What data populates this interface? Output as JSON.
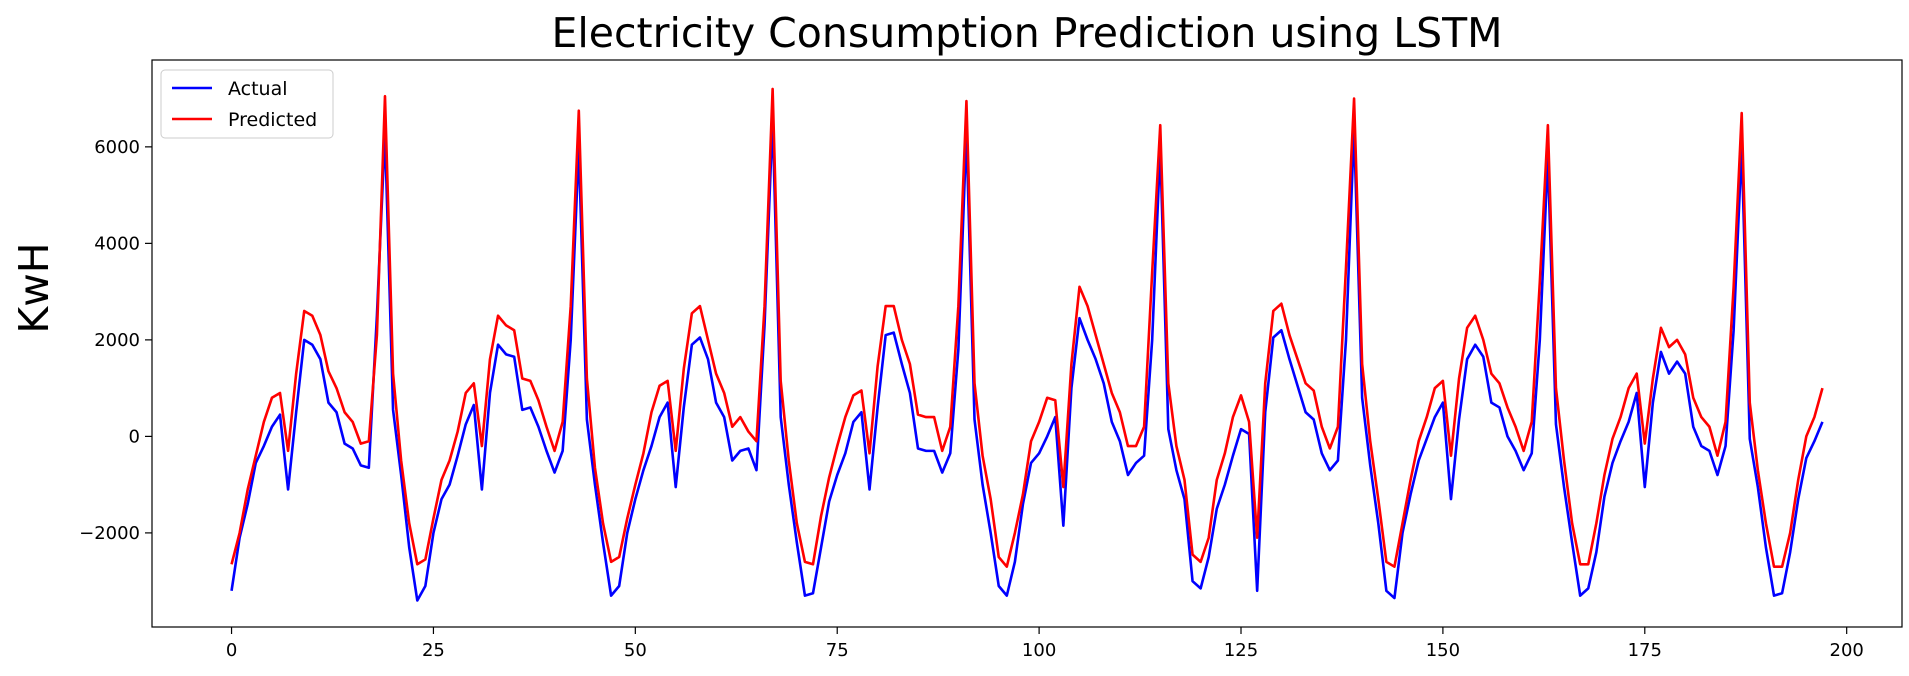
{
  "chart_data": {
    "type": "line",
    "title": "Electricity Consumption Prediction using LSTM",
    "xlabel": "",
    "ylabel": "KwH",
    "xlim": [
      -9.85,
      206.85
    ],
    "ylim": [
      -3950,
      7800
    ],
    "xticks": [
      0,
      25,
      50,
      75,
      100,
      125,
      150,
      175,
      200
    ],
    "yticks": [
      -2000,
      0,
      2000,
      4000,
      6000
    ],
    "ytick_labels": [
      "−2000",
      "0",
      "2000",
      "4000",
      "6000"
    ],
    "grid": false,
    "legend": "top-left",
    "x": [
      0,
      1,
      2,
      3,
      4,
      5,
      6,
      7,
      8,
      9,
      10,
      11,
      12,
      13,
      14,
      15,
      16,
      17,
      18,
      19,
      20,
      21,
      22,
      23,
      24,
      25,
      26,
      27,
      28,
      29,
      30,
      31,
      32,
      33,
      34,
      35,
      36,
      37,
      38,
      39,
      40,
      41,
      42,
      43,
      44,
      45,
      46,
      47,
      48,
      49,
      50,
      51,
      52,
      53,
      54,
      55,
      56,
      57,
      58,
      59,
      60,
      61,
      62,
      63,
      64,
      65,
      66,
      67,
      68,
      69,
      70,
      71,
      72,
      73,
      74,
      75,
      76,
      77,
      78,
      79,
      80,
      81,
      82,
      83,
      84,
      85,
      86,
      87,
      88,
      89,
      90,
      91,
      92,
      93,
      94,
      95,
      96,
      97,
      98,
      99,
      100,
      101,
      102,
      103,
      104,
      105,
      106,
      107,
      108,
      109,
      110,
      111,
      112,
      113,
      114,
      115,
      116,
      117,
      118,
      119,
      120,
      121,
      122,
      123,
      124,
      125,
      126,
      127,
      128,
      129,
      130,
      131,
      132,
      133,
      134,
      135,
      136,
      137,
      138,
      139,
      140,
      141,
      142,
      143,
      144,
      145,
      146,
      147,
      148,
      149,
      150,
      151,
      152,
      153,
      154,
      155,
      156,
      157,
      158,
      159,
      160,
      161,
      162,
      163,
      164,
      165,
      166,
      167,
      168,
      169,
      170,
      171,
      172,
      173,
      174,
      175,
      176,
      177,
      178,
      179,
      180,
      181,
      182,
      183,
      184,
      185,
      186,
      187,
      188,
      189,
      190,
      191,
      192,
      193,
      194,
      195,
      196,
      197
    ],
    "series": [
      {
        "name": "Actual",
        "color": "#0000ff",
        "values": [
          -3200,
          -2100,
          -1400,
          -550,
          -200,
          200,
          450,
          -1100,
          500,
          2000,
          1900,
          1600,
          700,
          500,
          -150,
          -250,
          -600,
          -650,
          2500,
          6300,
          550,
          -800,
          -2300,
          -3400,
          -3100,
          -2000,
          -1300,
          -1000,
          -400,
          250,
          650,
          -1100,
          900,
          1900,
          1700,
          1650,
          550,
          600,
          200,
          -300,
          -750,
          -300,
          2000,
          6000,
          350,
          -1000,
          -2200,
          -3300,
          -3100,
          -2000,
          -1300,
          -700,
          -200,
          400,
          700,
          -1050,
          600,
          1900,
          2050,
          1600,
          700,
          400,
          -500,
          -300,
          -250,
          -700,
          2300,
          6600,
          400,
          -1000,
          -2200,
          -3300,
          -3250,
          -2300,
          -1350,
          -800,
          -350,
          300,
          500,
          -1100,
          600,
          2100,
          2150,
          1500,
          900,
          -250,
          -300,
          -300,
          -750,
          -350,
          1800,
          6300,
          350,
          -1000,
          -2000,
          -3100,
          -3300,
          -2600,
          -1400,
          -550,
          -350,
          0,
          400,
          -1850,
          1000,
          2450,
          2000,
          1600,
          1100,
          300,
          -100,
          -800,
          -550,
          -400,
          2000,
          6000,
          150,
          -700,
          -1300,
          -3000,
          -3150,
          -2500,
          -1500,
          -1000,
          -400,
          150,
          50,
          -3200,
          500,
          2050,
          2200,
          1600,
          1050,
          500,
          350,
          -350,
          -700,
          -500,
          2000,
          6400,
          800,
          -600,
          -1800,
          -3200,
          -3350,
          -2000,
          -1200,
          -500,
          -50,
          400,
          700,
          -1300,
          350,
          1600,
          1900,
          1650,
          700,
          600,
          0,
          -300,
          -700,
          -350,
          2000,
          5800,
          250,
          -1050,
          -2200,
          -3300,
          -3150,
          -2400,
          -1250,
          -550,
          -100,
          300,
          900,
          -1050,
          700,
          1750,
          1300,
          1550,
          1300,
          200,
          -200,
          -300,
          -800,
          -200,
          2200,
          6000,
          -50,
          -1050,
          -2300,
          -3300,
          -3250,
          -2400,
          -1300,
          -450,
          -100,
          300
        ]
      },
      {
        "name": "Predicted",
        "color": "#ff0000",
        "values": [
          -2650,
          -2000,
          -1100,
          -400,
          300,
          800,
          900,
          -300,
          1300,
          2600,
          2500,
          2100,
          1350,
          1000,
          500,
          300,
          -150,
          -100,
          2100,
          7050,
          1300,
          -500,
          -1800,
          -2650,
          -2550,
          -1700,
          -900,
          -500,
          100,
          900,
          1100,
          -200,
          1600,
          2500,
          2300,
          2200,
          1200,
          1150,
          750,
          200,
          -300,
          300,
          2700,
          6750,
          1200,
          -650,
          -1800,
          -2600,
          -2500,
          -1700,
          -1000,
          -350,
          500,
          1050,
          1150,
          -300,
          1400,
          2550,
          2700,
          2000,
          1300,
          900,
          200,
          400,
          100,
          -100,
          2700,
          7200,
          1150,
          -500,
          -1800,
          -2600,
          -2650,
          -1650,
          -850,
          -200,
          400,
          850,
          950,
          -350,
          1450,
          2700,
          2700,
          2000,
          1500,
          450,
          400,
          400,
          -300,
          200,
          2700,
          6950,
          1100,
          -400,
          -1300,
          -2500,
          -2700,
          -2000,
          -1200,
          -100,
          300,
          800,
          750,
          -1050,
          1500,
          3100,
          2700,
          2100,
          1500,
          900,
          500,
          -200,
          -200,
          200,
          3400,
          6450,
          1100,
          -200,
          -900,
          -2450,
          -2600,
          -2100,
          -900,
          -350,
          400,
          850,
          300,
          -2100,
          1100,
          2600,
          2750,
          2100,
          1600,
          1100,
          950,
          200,
          -250,
          200,
          3500,
          7000,
          1500,
          -100,
          -1300,
          -2600,
          -2700,
          -1800,
          -900,
          -100,
          400,
          1000,
          1150,
          -400,
          1200,
          2250,
          2500,
          2000,
          1300,
          1100,
          600,
          200,
          -300,
          300,
          3200,
          6450,
          1000,
          -500,
          -1800,
          -2650,
          -2650,
          -1800,
          -800,
          -50,
          400,
          1000,
          1300,
          -150,
          1200,
          2250,
          1850,
          2000,
          1700,
          800,
          400,
          200,
          -400,
          300,
          3100,
          6700,
          700,
          -700,
          -1800,
          -2700,
          -2700,
          -2000,
          -900,
          0,
          400,
          1000
        ]
      }
    ]
  }
}
